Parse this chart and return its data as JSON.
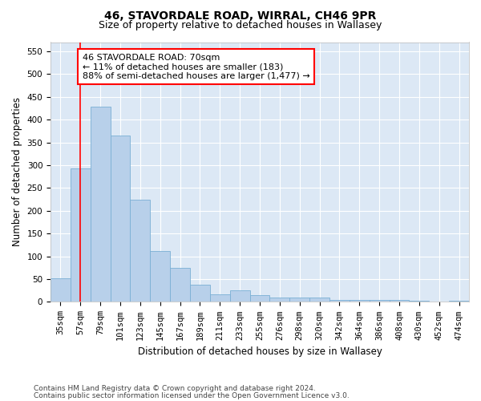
{
  "title1": "46, STAVORDALE ROAD, WIRRAL, CH46 9PR",
  "title2": "Size of property relative to detached houses in Wallasey",
  "xlabel": "Distribution of detached houses by size in Wallasey",
  "ylabel": "Number of detached properties",
  "categories": [
    "35sqm",
    "57sqm",
    "79sqm",
    "101sqm",
    "123sqm",
    "145sqm",
    "167sqm",
    "189sqm",
    "211sqm",
    "233sqm",
    "255sqm",
    "276sqm",
    "298sqm",
    "320sqm",
    "342sqm",
    "364sqm",
    "386sqm",
    "408sqm",
    "430sqm",
    "452sqm",
    "474sqm"
  ],
  "values": [
    52,
    292,
    428,
    365,
    224,
    112,
    75,
    38,
    16,
    26,
    14,
    9,
    9,
    9,
    5,
    5,
    5,
    5,
    2,
    0,
    3
  ],
  "bar_color": "#b8d0ea",
  "bar_edge_color": "#7aafd4",
  "vline_x": 1.0,
  "vline_color": "red",
  "annotation_line1": "46 STAVORDALE ROAD: 70sqm",
  "annotation_line2": "← 11% of detached houses are smaller (183)",
  "annotation_line3": "88% of semi-detached houses are larger (1,477) →",
  "annotation_box_color": "white",
  "annotation_box_edge_color": "red",
  "ylim": [
    0,
    570
  ],
  "yticks": [
    0,
    50,
    100,
    150,
    200,
    250,
    300,
    350,
    400,
    450,
    500,
    550
  ],
  "footer1": "Contains HM Land Registry data © Crown copyright and database right 2024.",
  "footer2": "Contains public sector information licensed under the Open Government Licence v3.0.",
  "background_color": "#dce8f5",
  "grid_color": "white",
  "title1_fontsize": 10,
  "title2_fontsize": 9,
  "axis_label_fontsize": 8.5,
  "tick_fontsize": 7.5,
  "annotation_fontsize": 8,
  "footer_fontsize": 6.5
}
